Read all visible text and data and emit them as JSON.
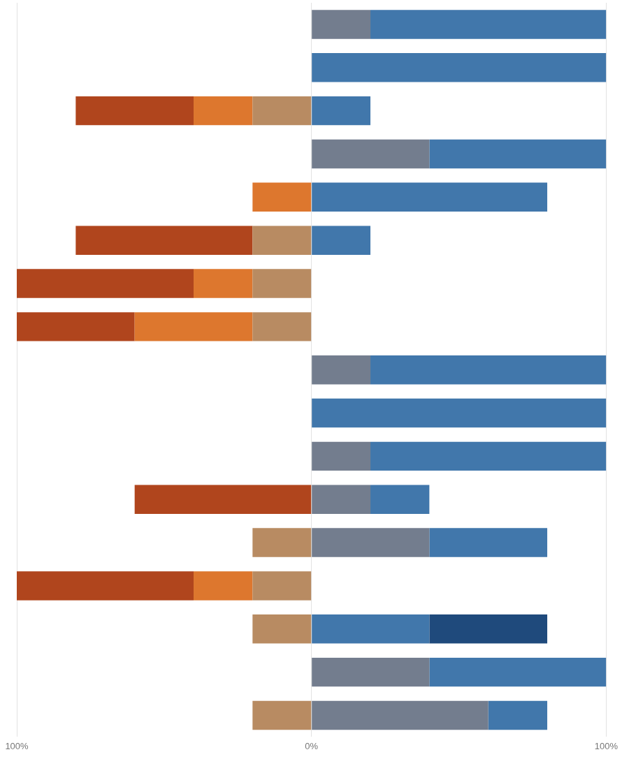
{
  "chart_data": {
    "type": "bar",
    "orientation": "horizontal",
    "stacked": true,
    "categories": [
      null,
      null,
      null,
      null,
      null,
      null,
      null,
      null,
      null,
      null,
      null,
      null,
      null,
      null,
      null,
      null,
      null
    ],
    "series": [
      {
        "color": "#b88b62",
        "values": [
          null,
          null,
          -20,
          null,
          null,
          -20,
          -20,
          -20,
          null,
          null,
          null,
          null,
          -20,
          -20,
          -20,
          null,
          -20
        ]
      },
      {
        "color": "#dd772e",
        "values": [
          null,
          null,
          -20,
          null,
          -20,
          null,
          -20,
          -40,
          null,
          null,
          null,
          null,
          null,
          -20,
          null,
          null,
          null
        ]
      },
      {
        "color": "#b0451d",
        "values": [
          null,
          null,
          -40,
          null,
          null,
          -60,
          -60,
          -40,
          null,
          null,
          null,
          -60,
          null,
          -60,
          null,
          null,
          null
        ]
      },
      {
        "color": "#737d8e",
        "values": [
          20,
          null,
          null,
          40,
          null,
          null,
          null,
          null,
          20,
          null,
          20,
          20,
          40,
          null,
          null,
          40,
          60
        ]
      },
      {
        "color": "#4177ab",
        "values": [
          80,
          100,
          20,
          60,
          80,
          20,
          null,
          null,
          80,
          100,
          80,
          20,
          40,
          null,
          40,
          60,
          20
        ]
      },
      {
        "color": "#1f4a7c",
        "values": [
          null,
          null,
          null,
          null,
          null,
          null,
          null,
          null,
          null,
          null,
          null,
          null,
          null,
          null,
          40,
          null,
          null
        ]
      }
    ],
    "xlim": [
      -100,
      100
    ],
    "xticks": [
      {
        "value": -100,
        "label": "100%"
      },
      {
        "value": 0,
        "label": "0%"
      },
      {
        "value": 100,
        "label": "100%"
      }
    ],
    "grid": "x",
    "tick_labels": "x",
    "legend": false
  }
}
